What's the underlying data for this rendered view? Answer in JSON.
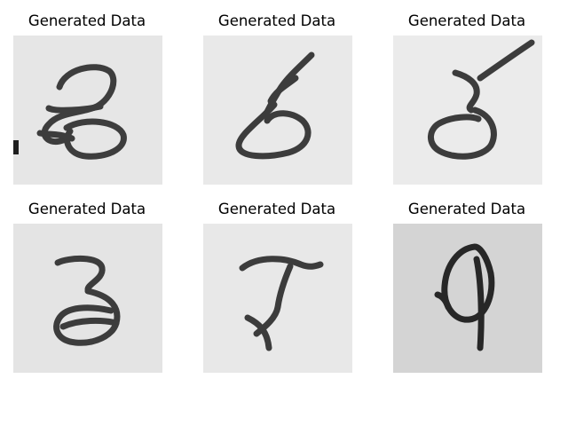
{
  "figure": {
    "panels": [
      {
        "title": "Generated Data",
        "background": "#e6e6e6"
      },
      {
        "title": "Generated Data",
        "background": "#e9e9e9"
      },
      {
        "title": "Generated Data",
        "background": "#ebebeb"
      },
      {
        "title": "Generated Data",
        "background": "#e4e4e4"
      },
      {
        "title": "Generated Data",
        "background": "#e8e8e8"
      },
      {
        "title": "Generated Data",
        "background": "#d4d4d4"
      }
    ],
    "ink_color": "#222222"
  }
}
